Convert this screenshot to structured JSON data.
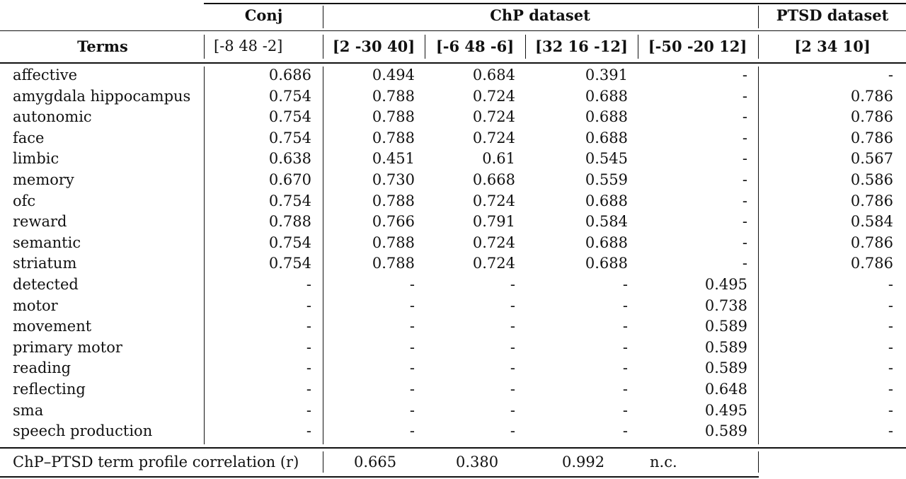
{
  "header": {
    "group_conj": "Conj",
    "group_chp": "ChP dataset",
    "group_ptsd": "PTSD dataset",
    "terms_label": "Terms",
    "col_conj": "[-8 48 -2]",
    "col_chp": [
      "[2 -30 40]",
      "[-6 48 -6]",
      "[32 16 -12]",
      "[-50 -20 12]"
    ],
    "col_ptsd": "[2 34 10]"
  },
  "rows": [
    {
      "term": "affective",
      "values": [
        "0.686",
        "0.494",
        "0.684",
        "0.391",
        "-",
        "-"
      ]
    },
    {
      "term": "amygdala hippocampus",
      "values": [
        "0.754",
        "0.788",
        "0.724",
        "0.688",
        "-",
        "0.786"
      ]
    },
    {
      "term": "autonomic",
      "values": [
        "0.754",
        "0.788",
        "0.724",
        "0.688",
        "-",
        "0.786"
      ]
    },
    {
      "term": "face",
      "values": [
        "0.754",
        "0.788",
        "0.724",
        "0.688",
        "-",
        "0.786"
      ]
    },
    {
      "term": "limbic",
      "values": [
        "0.638",
        "0.451",
        "0.61",
        "0.545",
        "-",
        "0.567"
      ]
    },
    {
      "term": "memory",
      "values": [
        "0.670",
        "0.730",
        "0.668",
        "0.559",
        "-",
        "0.586"
      ]
    },
    {
      "term": "ofc",
      "values": [
        "0.754",
        "0.788",
        "0.724",
        "0.688",
        "-",
        "0.786"
      ]
    },
    {
      "term": "reward",
      "values": [
        "0.788",
        "0.766",
        "0.791",
        "0.584",
        "-",
        "0.584"
      ]
    },
    {
      "term": "semantic",
      "values": [
        "0.754",
        "0.788",
        "0.724",
        "0.688",
        "-",
        "0.786"
      ]
    },
    {
      "term": "striatum",
      "values": [
        "0.754",
        "0.788",
        "0.724",
        "0.688",
        "-",
        "0.786"
      ]
    },
    {
      "term": "detected",
      "values": [
        "-",
        "-",
        "-",
        "-",
        "0.495",
        "-"
      ]
    },
    {
      "term": "motor",
      "values": [
        "-",
        "-",
        "-",
        "-",
        "0.738",
        "-"
      ]
    },
    {
      "term": "movement",
      "values": [
        "-",
        "-",
        "-",
        "-",
        "0.589",
        "-"
      ]
    },
    {
      "term": "primary motor",
      "values": [
        "-",
        "-",
        "-",
        "-",
        "0.589",
        "-"
      ]
    },
    {
      "term": "reading",
      "values": [
        "-",
        "-",
        "-",
        "-",
        "0.589",
        "-"
      ]
    },
    {
      "term": "reflecting",
      "values": [
        "-",
        "-",
        "-",
        "-",
        "0.648",
        "-"
      ]
    },
    {
      "term": "sma",
      "values": [
        "-",
        "-",
        "-",
        "-",
        "0.495",
        "-"
      ]
    },
    {
      "term": "speech production",
      "values": [
        "-",
        "-",
        "-",
        "-",
        "0.589",
        "-"
      ]
    }
  ],
  "footer": {
    "label": "ChP–PTSD term profile correlation (r)",
    "values": [
      "0.665",
      "0.380",
      "0.992",
      "n.c."
    ]
  }
}
